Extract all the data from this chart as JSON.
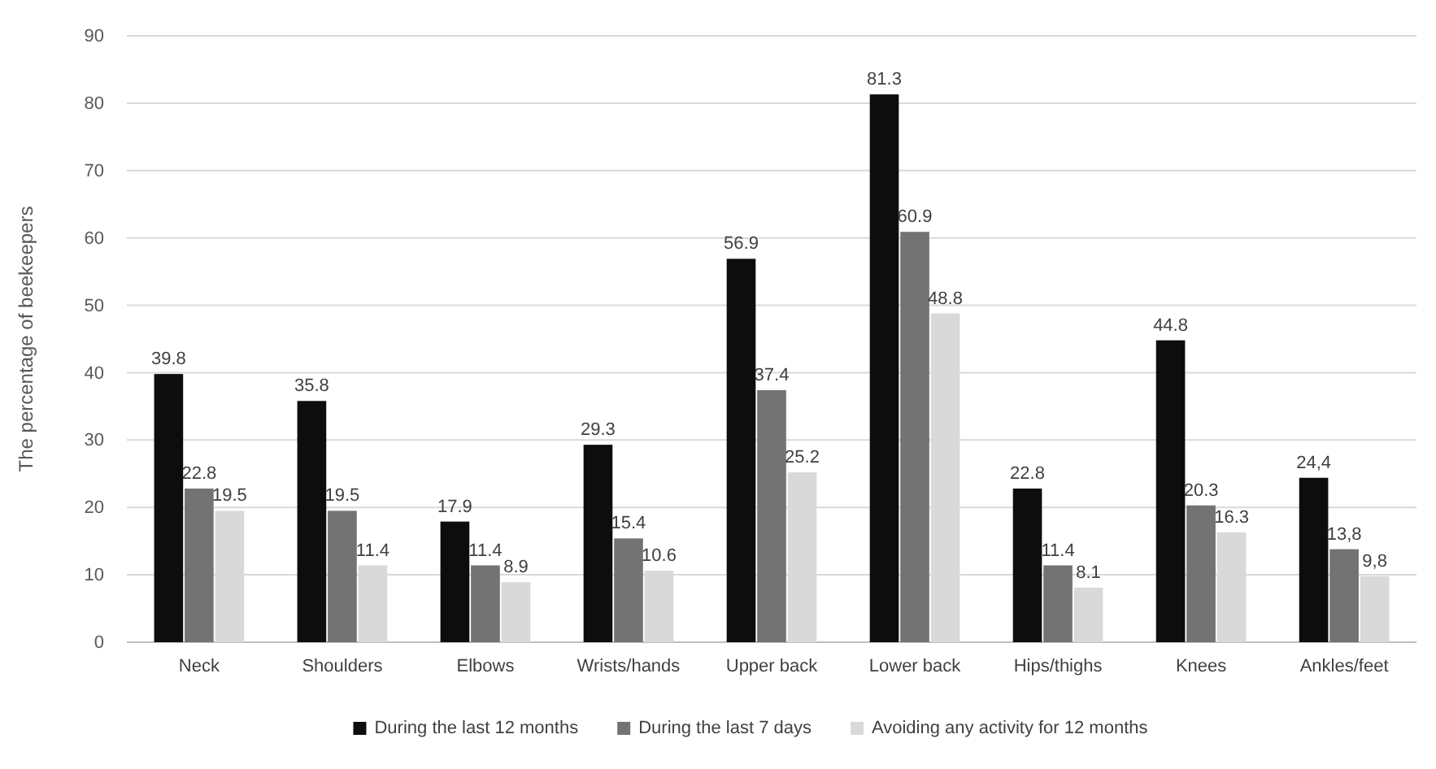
{
  "chart_data": {
    "type": "bar",
    "ylabel": "The percentage of beekeepers",
    "categories": [
      "Neck",
      "Shoulders",
      "Elbows",
      "Wrists/hands",
      "Upper back",
      "Lower back",
      "Hips/thighs",
      "Knees",
      "Ankles/feet"
    ],
    "series": [
      {
        "name": "During the last 12 months",
        "color": "#0d0d0d",
        "values": [
          39.8,
          35.8,
          17.9,
          29.3,
          56.9,
          81.3,
          22.8,
          44.8,
          24.4
        ],
        "value_labels": [
          "39.8",
          "35.8",
          "17.9",
          "29.3",
          "56.9",
          "81.3",
          "22.8",
          "44.8",
          "24,4"
        ]
      },
      {
        "name": "During the last 7 days",
        "color": "#737373",
        "values": [
          22.8,
          19.5,
          11.4,
          15.4,
          37.4,
          60.9,
          11.4,
          20.3,
          13.8
        ],
        "value_labels": [
          "22.8",
          "19.5",
          "11.4",
          "15.4",
          "37.4",
          "60.9",
          "11.4",
          "20.3",
          "13,8"
        ]
      },
      {
        "name": "Avoiding any activity for 12 months",
        "color": "#d9d9d9",
        "values": [
          19.5,
          11.4,
          8.9,
          10.6,
          25.2,
          48.8,
          8.1,
          16.3,
          9.8
        ],
        "value_labels": [
          "19.5",
          "11.4",
          "8.9",
          "10.6",
          "25.2",
          "48.8",
          "8.1",
          "16.3",
          "9,8"
        ]
      }
    ],
    "ylim": [
      0,
      90
    ],
    "yticks": [
      0,
      10,
      20,
      30,
      40,
      50,
      60,
      70,
      80,
      90
    ],
    "grid": "y",
    "legend": "bottom"
  }
}
